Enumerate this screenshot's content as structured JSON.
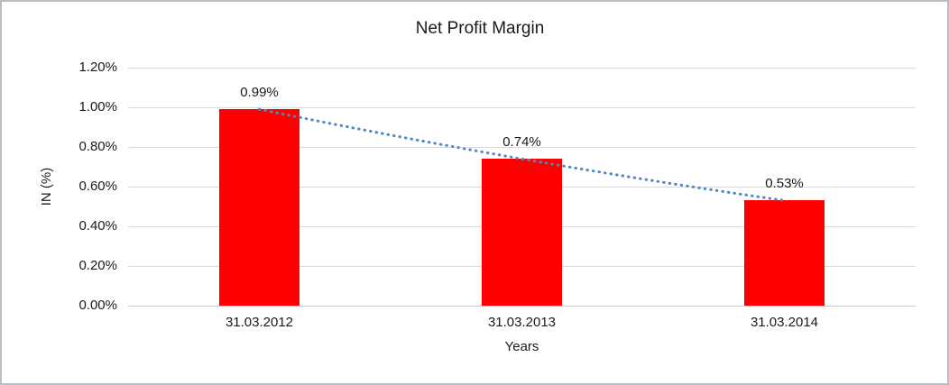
{
  "window": {
    "background_color": "#ffffff",
    "border_color": "#b9bec2"
  },
  "chart_data": {
    "type": "bar",
    "title": "Net Profit Margin",
    "xlabel": "Years",
    "ylabel": "IN (%)",
    "categories": [
      "31.03.2012",
      "31.03.2013",
      "31.03.2014"
    ],
    "values": [
      0.99,
      0.74,
      0.53
    ],
    "data_labels": [
      "0.99%",
      "0.74%",
      "0.53%"
    ],
    "yticks": [
      "0.00%",
      "0.20%",
      "0.40%",
      "0.60%",
      "0.80%",
      "1.00%",
      "1.20%"
    ],
    "ytick_values": [
      0.0,
      0.2,
      0.4,
      0.6,
      0.8,
      1.0,
      1.2
    ],
    "ylim": [
      0,
      1.2
    ],
    "grid": true,
    "legend": "none",
    "bar_color": "#ff0000",
    "gridline_color": "#d9d9d9",
    "text_color": "#1a1a1a",
    "trendline": {
      "style": "dotted",
      "color": "#4e87c5",
      "through_values": [
        0.99,
        0.74,
        0.53
      ]
    }
  }
}
